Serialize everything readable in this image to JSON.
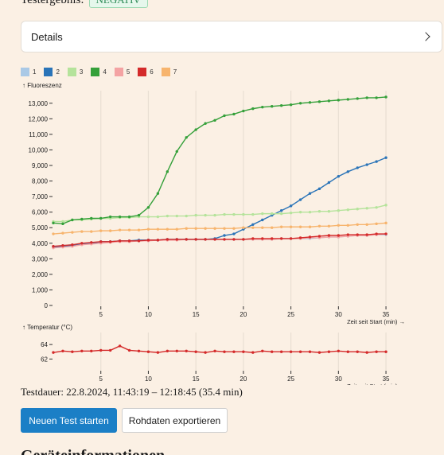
{
  "result": {
    "label": "Testergebnis:",
    "value": "NEGATIV"
  },
  "details": {
    "label": "Details"
  },
  "legend": [
    {
      "label": "1",
      "color": "#aac9e6"
    },
    {
      "label": "2",
      "color": "#2a74b8"
    },
    {
      "label": "3",
      "color": "#b5e39b"
    },
    {
      "label": "4",
      "color": "#35a03a"
    },
    {
      "label": "5",
      "color": "#f4a3a3"
    },
    {
      "label": "6",
      "color": "#d42a2a"
    },
    {
      "label": "7",
      "color": "#f7b46d"
    }
  ],
  "chart_data": [
    {
      "type": "line",
      "ylabel": "↑ Fluoreszenz",
      "xlabel": "Zeit seit Start (min) →",
      "xlim": [
        0,
        36
      ],
      "ylim": [
        0,
        13500
      ],
      "xticks": [
        5,
        10,
        15,
        20,
        25,
        30,
        35
      ],
      "yticks": [
        0,
        1000,
        2000,
        3000,
        4000,
        5000,
        6000,
        7000,
        8000,
        9000,
        10000,
        11000,
        12000,
        13000
      ],
      "ytick_labels": [
        "0",
        "1,000",
        "2,000",
        "3,000",
        "4,000",
        "5,000",
        "6,000",
        "7,000",
        "8,000",
        "9,000",
        "10,000",
        "11,000",
        "12,000",
        "13,000"
      ],
      "x": [
        0,
        1,
        2,
        3,
        4,
        5,
        6,
        7,
        8,
        9,
        10,
        11,
        12,
        13,
        14,
        15,
        16,
        17,
        18,
        19,
        20,
        21,
        22,
        23,
        24,
        25,
        26,
        27,
        28,
        29,
        30,
        31,
        32,
        33,
        34,
        35
      ],
      "series": [
        {
          "name": "1",
          "color": "#aac9e6",
          "values": [
            3800,
            3850,
            3900,
            3950,
            4000,
            4050,
            4100,
            4150,
            4150,
            4200,
            4200,
            4200,
            4250,
            4250,
            4250,
            4250,
            4250,
            4250,
            4250,
            4250,
            4250,
            4250,
            4250,
            4250,
            4300,
            4300,
            4300,
            4300,
            4350,
            4400,
            4400,
            4450,
            4500,
            4500,
            4550,
            4550
          ]
        },
        {
          "name": "2",
          "color": "#2a74b8",
          "values": [
            3750,
            3800,
            3850,
            3950,
            4000,
            4100,
            4100,
            4150,
            4150,
            4200,
            4200,
            4200,
            4250,
            4250,
            4250,
            4250,
            4250,
            4300,
            4500,
            4600,
            4900,
            5200,
            5500,
            5800,
            6100,
            6400,
            6800,
            7200,
            7500,
            7900,
            8300,
            8600,
            8850,
            9050,
            9250,
            9500
          ]
        },
        {
          "name": "3",
          "color": "#b5e39b",
          "values": [
            5400,
            5400,
            5500,
            5500,
            5550,
            5600,
            5600,
            5650,
            5650,
            5700,
            5700,
            5700,
            5750,
            5750,
            5750,
            5800,
            5800,
            5800,
            5850,
            5850,
            5850,
            5850,
            5900,
            5900,
            5900,
            5950,
            6000,
            6000,
            6050,
            6050,
            6100,
            6150,
            6200,
            6250,
            6300,
            6450
          ]
        },
        {
          "name": "4",
          "color": "#35a03a",
          "values": [
            5300,
            5250,
            5500,
            5550,
            5600,
            5600,
            5700,
            5700,
            5700,
            5800,
            6300,
            7200,
            8600,
            9900,
            10800,
            11300,
            11700,
            11900,
            12200,
            12300,
            12500,
            12650,
            12750,
            12800,
            12850,
            12900,
            13000,
            13050,
            13100,
            13150,
            13200,
            13250,
            13300,
            13350,
            13350,
            13400
          ]
        },
        {
          "name": "5",
          "color": "#f4a3a3",
          "values": [
            3700,
            3750,
            3800,
            3900,
            3950,
            4000,
            4050,
            4100,
            4100,
            4150,
            4150,
            4200,
            4200,
            4200,
            4250,
            4250,
            4250,
            4250,
            4250,
            4250,
            4250,
            4250,
            4250,
            4250,
            4300,
            4300,
            4300,
            4350,
            4350,
            4400,
            4400,
            4450,
            4500,
            4500,
            4550,
            4600
          ]
        },
        {
          "name": "6",
          "color": "#d42a2a",
          "values": [
            3800,
            3850,
            3900,
            4000,
            4050,
            4100,
            4100,
            4150,
            4150,
            4150,
            4200,
            4200,
            4250,
            4250,
            4250,
            4250,
            4250,
            4250,
            4250,
            4250,
            4250,
            4300,
            4300,
            4300,
            4300,
            4300,
            4350,
            4400,
            4450,
            4500,
            4500,
            4550,
            4550,
            4550,
            4600,
            4600
          ]
        },
        {
          "name": "7",
          "color": "#f7b46d",
          "values": [
            4600,
            4650,
            4700,
            4750,
            4750,
            4800,
            4800,
            4850,
            4850,
            4850,
            4900,
            4900,
            4900,
            4900,
            4950,
            4950,
            4950,
            4950,
            4950,
            4950,
            5000,
            5000,
            5000,
            5000,
            5050,
            5050,
            5050,
            5050,
            5100,
            5100,
            5150,
            5150,
            5200,
            5200,
            5250,
            5300
          ]
        }
      ]
    },
    {
      "type": "line",
      "ylabel": "↑ Temperatur (°C)",
      "xlabel": "Zeit seit Start (min) →",
      "xlim": [
        0,
        36
      ],
      "ylim": [
        60.5,
        65
      ],
      "xticks": [
        5,
        10,
        15,
        20,
        25,
        30,
        35
      ],
      "yticks": [
        62,
        64
      ],
      "ytick_labels": [
        "62",
        "64"
      ],
      "x": [
        0,
        1,
        2,
        3,
        4,
        5,
        6,
        7,
        8,
        9,
        10,
        11,
        12,
        13,
        14,
        15,
        16,
        17,
        18,
        19,
        20,
        21,
        22,
        23,
        24,
        25,
        26,
        27,
        28,
        29,
        30,
        31,
        32,
        33,
        34,
        35
      ],
      "series": [
        {
          "name": "",
          "color": "#d42a2a",
          "values": [
            62.9,
            63.1,
            63.0,
            63.1,
            63.1,
            63.2,
            63.2,
            63.8,
            63.2,
            63.1,
            63.0,
            62.9,
            63.1,
            63.1,
            63.1,
            63.0,
            62.9,
            63.1,
            63.0,
            63.0,
            63.0,
            62.9,
            63.1,
            63.0,
            63.0,
            63.0,
            63.0,
            63.0,
            62.9,
            63.0,
            63.1,
            63.0,
            63.0,
            62.9,
            63.0,
            63.0
          ]
        }
      ]
    }
  ],
  "duration": "Testdauer: 22.8.2024, 11:43:19 – 12:18:45 (35.4 min)",
  "buttons": {
    "start": "Neuen Test starten",
    "export": "Rohdaten exportieren"
  },
  "section": {
    "title": "Geräteinformationen"
  }
}
